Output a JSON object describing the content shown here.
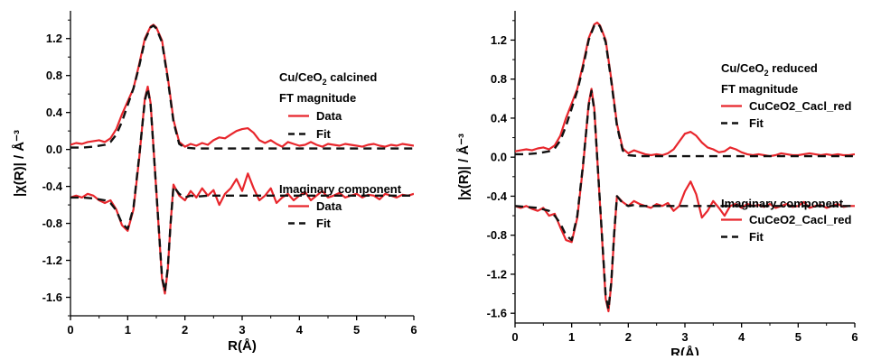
{
  "chart_data": [
    {
      "type": "line",
      "xlabel": "R(Å)",
      "ylabel": "|χ(R)|  / Å⁻³",
      "xlim": [
        0,
        6
      ],
      "ylim": [
        -1.8,
        1.5
      ],
      "xticks": [
        0,
        1,
        2,
        3,
        4,
        5,
        6
      ],
      "yticks": [
        -1.6,
        -1.2,
        -0.8,
        -0.4,
        0.0,
        0.4,
        0.8,
        1.2
      ],
      "colors": {
        "data": "#e8262c",
        "fit": "#111111"
      },
      "annotation": {
        "title_prefix": "Cu/CeO",
        "title_sub": "2",
        "title_suffix": " calcined",
        "mag_heading": "FT magnitude",
        "mag_data_label": "Data",
        "mag_fit_label": "Fit",
        "imag_heading": "Imaginary component",
        "imag_data_label": "Data",
        "imag_fit_label": "Fit"
      },
      "series": [
        {
          "name": "Data",
          "group": "magnitude",
          "style": "solid",
          "x": [
            0,
            0.1,
            0.2,
            0.3,
            0.4,
            0.5,
            0.6,
            0.7,
            0.8,
            0.9,
            1.0,
            1.1,
            1.2,
            1.3,
            1.4,
            1.45,
            1.5,
            1.6,
            1.7,
            1.8,
            1.9,
            2.0,
            2.1,
            2.2,
            2.3,
            2.4,
            2.5,
            2.6,
            2.7,
            2.8,
            2.9,
            3.0,
            3.1,
            3.2,
            3.3,
            3.4,
            3.5,
            3.6,
            3.7,
            3.8,
            3.9,
            4.0,
            4.1,
            4.2,
            4.3,
            4.4,
            4.5,
            4.6,
            4.7,
            4.8,
            4.9,
            5.0,
            5.1,
            5.2,
            5.3,
            5.4,
            5.5,
            5.6,
            5.7,
            5.8,
            5.9,
            6.0
          ],
          "y": [
            0.05,
            0.07,
            0.06,
            0.08,
            0.09,
            0.1,
            0.08,
            0.12,
            0.22,
            0.38,
            0.52,
            0.66,
            0.92,
            1.2,
            1.33,
            1.35,
            1.32,
            1.18,
            0.78,
            0.32,
            0.08,
            0.03,
            0.06,
            0.04,
            0.07,
            0.05,
            0.1,
            0.13,
            0.12,
            0.16,
            0.2,
            0.22,
            0.23,
            0.18,
            0.1,
            0.07,
            0.1,
            0.06,
            0.03,
            0.08,
            0.06,
            0.04,
            0.05,
            0.08,
            0.05,
            0.03,
            0.06,
            0.05,
            0.04,
            0.06,
            0.05,
            0.04,
            0.03,
            0.05,
            0.06,
            0.04,
            0.03,
            0.05,
            0.04,
            0.06,
            0.05,
            0.04
          ]
        },
        {
          "name": "Fit",
          "group": "magnitude",
          "style": "dash",
          "x": [
            0,
            0.2,
            0.4,
            0.6,
            0.7,
            0.8,
            0.9,
            1.0,
            1.1,
            1.2,
            1.3,
            1.4,
            1.45,
            1.5,
            1.6,
            1.7,
            1.8,
            1.9,
            2.0,
            2.2,
            2.5,
            3.0,
            4.0,
            5.0,
            6.0
          ],
          "y": [
            0.02,
            0.02,
            0.03,
            0.05,
            0.08,
            0.16,
            0.3,
            0.48,
            0.66,
            0.9,
            1.18,
            1.32,
            1.34,
            1.31,
            1.16,
            0.76,
            0.3,
            0.06,
            0.02,
            0.01,
            0.01,
            0.01,
            0.01,
            0.01,
            0.01
          ]
        },
        {
          "name": "Data",
          "group": "imaginary",
          "style": "solid",
          "x": [
            0,
            0.1,
            0.2,
            0.3,
            0.4,
            0.5,
            0.6,
            0.7,
            0.8,
            0.9,
            1.0,
            1.1,
            1.2,
            1.3,
            1.35,
            1.4,
            1.5,
            1.6,
            1.65,
            1.7,
            1.75,
            1.8,
            1.9,
            2.0,
            2.1,
            2.2,
            2.3,
            2.4,
            2.5,
            2.6,
            2.7,
            2.8,
            2.9,
            3.0,
            3.1,
            3.2,
            3.3,
            3.4,
            3.5,
            3.6,
            3.7,
            3.8,
            3.9,
            4.0,
            4.1,
            4.2,
            4.3,
            4.4,
            4.5,
            4.6,
            4.7,
            4.8,
            4.9,
            5.0,
            5.1,
            5.2,
            5.3,
            5.4,
            5.5,
            5.6,
            5.7,
            5.8,
            5.9,
            6.0
          ],
          "y": [
            -0.52,
            -0.5,
            -0.52,
            -0.48,
            -0.5,
            -0.55,
            -0.58,
            -0.55,
            -0.65,
            -0.82,
            -0.88,
            -0.65,
            -0.1,
            0.55,
            0.68,
            0.5,
            -0.45,
            -1.4,
            -1.56,
            -1.3,
            -0.8,
            -0.38,
            -0.5,
            -0.55,
            -0.45,
            -0.52,
            -0.42,
            -0.5,
            -0.44,
            -0.6,
            -0.48,
            -0.42,
            -0.32,
            -0.45,
            -0.26,
            -0.42,
            -0.55,
            -0.5,
            -0.42,
            -0.58,
            -0.52,
            -0.48,
            -0.55,
            -0.5,
            -0.46,
            -0.55,
            -0.5,
            -0.45,
            -0.52,
            -0.5,
            -0.47,
            -0.52,
            -0.5,
            -0.48,
            -0.52,
            -0.49,
            -0.5,
            -0.54,
            -0.48,
            -0.5,
            -0.52,
            -0.49,
            -0.5,
            -0.48
          ]
        },
        {
          "name": "Fit",
          "group": "imaginary",
          "style": "dash",
          "x": [
            0,
            0.2,
            0.4,
            0.6,
            0.7,
            0.8,
            0.9,
            1.0,
            1.1,
            1.2,
            1.3,
            1.35,
            1.4,
            1.5,
            1.6,
            1.65,
            1.7,
            1.75,
            1.8,
            1.9,
            2.0,
            2.1,
            2.2,
            2.4,
            2.6,
            2.8,
            3.0,
            3.5,
            4.0,
            4.5,
            5.0,
            5.5,
            6.0
          ],
          "y": [
            -0.52,
            -0.52,
            -0.53,
            -0.55,
            -0.58,
            -0.66,
            -0.8,
            -0.86,
            -0.63,
            -0.08,
            0.53,
            0.66,
            0.48,
            -0.45,
            -1.38,
            -1.54,
            -1.28,
            -0.8,
            -0.4,
            -0.48,
            -0.52,
            -0.5,
            -0.51,
            -0.5,
            -0.5,
            -0.5,
            -0.5,
            -0.5,
            -0.5,
            -0.5,
            -0.5,
            -0.5,
            -0.5
          ]
        }
      ]
    },
    {
      "type": "line",
      "xlabel": "R(Å)",
      "ylabel": "|χ(R)|  / Å⁻³",
      "xlim": [
        0,
        6
      ],
      "ylim": [
        -1.7,
        1.5
      ],
      "xticks": [
        0,
        1,
        2,
        3,
        4,
        5,
        6
      ],
      "yticks": [
        -1.6,
        -1.2,
        -0.8,
        -0.4,
        0.0,
        0.4,
        0.8,
        1.2
      ],
      "colors": {
        "data": "#e8262c",
        "fit": "#111111"
      },
      "annotation": {
        "title_prefix": "Cu/CeO",
        "title_sub": "2",
        "title_suffix": " reduced",
        "mag_heading": "FT magnitude",
        "mag_data_label": "CuCeO2_Cacl_red",
        "mag_fit_label": "Fit",
        "imag_heading": "Imaginary component",
        "imag_data_label": "CuCeO2_Cacl_red",
        "imag_fit_label": "Fit"
      },
      "series": [
        {
          "name": "CuCeO2_Cacl_red",
          "group": "magnitude",
          "style": "solid",
          "x": [
            0,
            0.1,
            0.2,
            0.3,
            0.4,
            0.5,
            0.6,
            0.7,
            0.8,
            0.9,
            1.0,
            1.1,
            1.2,
            1.3,
            1.4,
            1.45,
            1.5,
            1.6,
            1.7,
            1.8,
            1.9,
            2.0,
            2.1,
            2.2,
            2.3,
            2.4,
            2.5,
            2.6,
            2.7,
            2.8,
            2.9,
            3.0,
            3.1,
            3.2,
            3.3,
            3.4,
            3.5,
            3.6,
            3.7,
            3.8,
            3.9,
            4.0,
            4.1,
            4.2,
            4.3,
            4.4,
            4.5,
            4.6,
            4.7,
            4.8,
            4.9,
            5.0,
            5.1,
            5.2,
            5.3,
            5.4,
            5.5,
            5.6,
            5.7,
            5.8,
            5.9,
            6.0
          ],
          "y": [
            0.06,
            0.07,
            0.08,
            0.07,
            0.09,
            0.1,
            0.08,
            0.12,
            0.22,
            0.4,
            0.55,
            0.7,
            0.95,
            1.22,
            1.36,
            1.38,
            1.35,
            1.2,
            0.8,
            0.34,
            0.09,
            0.04,
            0.07,
            0.05,
            0.03,
            0.02,
            0.03,
            0.02,
            0.04,
            0.08,
            0.16,
            0.24,
            0.26,
            0.22,
            0.15,
            0.1,
            0.08,
            0.05,
            0.06,
            0.1,
            0.08,
            0.05,
            0.03,
            0.02,
            0.03,
            0.02,
            0.01,
            0.02,
            0.04,
            0.03,
            0.02,
            0.02,
            0.03,
            0.04,
            0.03,
            0.02,
            0.03,
            0.02,
            0.03,
            0.02,
            0.02,
            0.03
          ]
        },
        {
          "name": "Fit",
          "group": "magnitude",
          "style": "dash",
          "x": [
            0,
            0.2,
            0.4,
            0.6,
            0.7,
            0.8,
            0.9,
            1.0,
            1.1,
            1.2,
            1.3,
            1.4,
            1.45,
            1.5,
            1.6,
            1.7,
            1.8,
            1.9,
            2.0,
            2.2,
            2.5,
            3.0,
            4.0,
            5.0,
            6.0
          ],
          "y": [
            0.03,
            0.03,
            0.04,
            0.06,
            0.09,
            0.17,
            0.32,
            0.5,
            0.68,
            0.92,
            1.2,
            1.35,
            1.37,
            1.34,
            1.18,
            0.78,
            0.32,
            0.07,
            0.02,
            0.01,
            0.01,
            0.01,
            0.01,
            0.01,
            0.01
          ]
        },
        {
          "name": "CuCeO2_Cacl_red",
          "group": "imaginary",
          "style": "solid",
          "x": [
            0,
            0.1,
            0.2,
            0.3,
            0.4,
            0.5,
            0.6,
            0.7,
            0.8,
            0.9,
            1.0,
            1.1,
            1.2,
            1.3,
            1.35,
            1.4,
            1.5,
            1.6,
            1.65,
            1.7,
            1.75,
            1.8,
            1.9,
            2.0,
            2.1,
            2.2,
            2.3,
            2.4,
            2.5,
            2.6,
            2.7,
            2.8,
            2.9,
            3.0,
            3.1,
            3.2,
            3.3,
            3.4,
            3.5,
            3.6,
            3.7,
            3.8,
            3.9,
            4.0,
            4.1,
            4.2,
            4.3,
            4.4,
            4.5,
            4.6,
            4.7,
            4.8,
            4.9,
            5.0,
            5.1,
            5.2,
            5.3,
            5.4,
            5.5,
            5.6,
            5.7,
            5.8,
            5.9,
            6.0
          ],
          "y": [
            -0.5,
            -0.52,
            -0.5,
            -0.53,
            -0.55,
            -0.52,
            -0.6,
            -0.58,
            -0.72,
            -0.85,
            -0.87,
            -0.62,
            -0.1,
            0.55,
            0.7,
            0.5,
            -0.48,
            -1.45,
            -1.58,
            -1.3,
            -0.8,
            -0.4,
            -0.46,
            -0.5,
            -0.45,
            -0.48,
            -0.5,
            -0.52,
            -0.48,
            -0.5,
            -0.47,
            -0.55,
            -0.5,
            -0.35,
            -0.25,
            -0.38,
            -0.62,
            -0.55,
            -0.45,
            -0.52,
            -0.6,
            -0.5,
            -0.48,
            -0.52,
            -0.48,
            -0.5,
            -0.49,
            -0.51,
            -0.48,
            -0.52,
            -0.5,
            -0.48,
            -0.51,
            -0.5,
            -0.46,
            -0.52,
            -0.5,
            -0.49,
            -0.52,
            -0.5,
            -0.48,
            -0.51,
            -0.5,
            -0.5
          ]
        },
        {
          "name": "Fit",
          "group": "imaginary",
          "style": "dash",
          "x": [
            0,
            0.2,
            0.4,
            0.6,
            0.7,
            0.8,
            0.9,
            1.0,
            1.1,
            1.2,
            1.3,
            1.35,
            1.4,
            1.5,
            1.6,
            1.65,
            1.7,
            1.75,
            1.8,
            1.9,
            2.0,
            2.1,
            2.2,
            2.4,
            2.6,
            2.8,
            3.0,
            3.5,
            4.0,
            4.5,
            5.0,
            5.5,
            6.0
          ],
          "y": [
            -0.5,
            -0.51,
            -0.52,
            -0.55,
            -0.6,
            -0.68,
            -0.8,
            -0.85,
            -0.6,
            -0.08,
            0.53,
            0.68,
            0.48,
            -0.47,
            -1.42,
            -1.56,
            -1.28,
            -0.78,
            -0.4,
            -0.47,
            -0.5,
            -0.49,
            -0.5,
            -0.5,
            -0.5,
            -0.5,
            -0.5,
            -0.5,
            -0.5,
            -0.5,
            -0.5,
            -0.5,
            -0.5
          ]
        }
      ]
    }
  ]
}
